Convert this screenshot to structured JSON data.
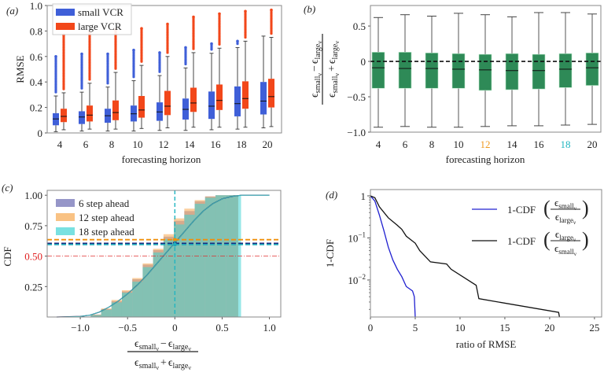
{
  "panel_labels": [
    "(a)",
    "(b)",
    "(c)",
    "(d)"
  ],
  "math": {
    "eps": "ϵ",
    "small": "small",
    "large": "large",
    "nu": "ν",
    "minus": "−",
    "plus": "+",
    "cdf_prefix": "1-CDF",
    "lparen": "(",
    "rparen": ")"
  },
  "chart_data": [
    {
      "type": "box",
      "xlabel": "forecasting horizon",
      "ylabel": "RMSE",
      "ylim": [
        0,
        1.0
      ],
      "yticks": [
        "0",
        "0.2",
        "0.4",
        "0.6",
        "0.8",
        "1.0"
      ],
      "categories": [
        "4",
        "6",
        "8",
        "10",
        "12",
        "14",
        "16",
        "18",
        "20"
      ],
      "legend_position": "top-left",
      "series": [
        {
          "name": "small VCR",
          "color": "#3f5fd8",
          "q1": [
            0.06,
            0.07,
            0.08,
            0.09,
            0.095,
            0.105,
            0.11,
            0.13,
            0.145
          ],
          "median": [
            0.11,
            0.125,
            0.135,
            0.15,
            0.165,
            0.185,
            0.21,
            0.23,
            0.25
          ],
          "q3": [
            0.155,
            0.17,
            0.19,
            0.215,
            0.24,
            0.27,
            0.325,
            0.365,
            0.4
          ],
          "whisker_low": [
            0.01,
            0.015,
            0.015,
            0.015,
            0.02,
            0.02,
            0.025,
            0.03,
            0.04
          ],
          "whisker_high": [
            0.29,
            0.32,
            0.36,
            0.41,
            0.45,
            0.51,
            0.625,
            0.67,
            0.76
          ],
          "outlier_max": [
            0.6,
            0.62,
            0.62,
            0.65,
            0.63,
            0.67,
            0.7,
            0.72,
            null
          ]
        },
        {
          "name": "large VCR",
          "color": "#f2471a",
          "q1": [
            0.085,
            0.09,
            0.1,
            0.12,
            0.14,
            0.165,
            0.18,
            0.19,
            0.2
          ],
          "median": [
            0.13,
            0.14,
            0.16,
            0.18,
            0.21,
            0.235,
            0.255,
            0.27,
            0.285
          ],
          "q3": [
            0.19,
            0.215,
            0.255,
            0.29,
            0.33,
            0.355,
            0.38,
            0.405,
            0.425
          ],
          "whisker_low": [
            0.025,
            0.03,
            0.03,
            0.035,
            0.04,
            0.045,
            0.045,
            0.045,
            0.05
          ],
          "whisker_high": [
            0.315,
            0.39,
            0.475,
            0.53,
            0.6,
            0.63,
            0.665,
            0.72,
            0.75
          ],
          "outlier_max": [
            0.77,
            0.79,
            0.81,
            0.82,
            0.855,
            0.91,
            0.935,
            0.955,
            0.965
          ]
        }
      ]
    },
    {
      "type": "box",
      "xlabel": "forecasting horizon",
      "ylim": [
        -1.0,
        0.79
      ],
      "yticks": [
        "−1.0",
        "−0.5",
        "0",
        "0.5"
      ],
      "ytick_values": [
        -1.0,
        -0.5,
        0,
        0.5
      ],
      "reference_line": 0,
      "categories": [
        "4",
        "6",
        "8",
        "10",
        "12",
        "14",
        "16",
        "18",
        "20"
      ],
      "category_colors": {
        "12": "#f09a20",
        "18": "#20b5c0"
      },
      "color": "#2e8a57",
      "q1": [
        -0.38,
        -0.38,
        -0.38,
        -0.38,
        -0.41,
        -0.4,
        -0.39,
        -0.37,
        -0.34
      ],
      "median": [
        -0.09,
        -0.1,
        -0.1,
        -0.11,
        -0.12,
        -0.13,
        -0.13,
        -0.11,
        -0.09
      ],
      "q3": [
        0.13,
        0.13,
        0.12,
        0.11,
        0.1,
        0.11,
        0.1,
        0.11,
        0.12
      ],
      "whisker_low": [
        -0.93,
        -0.92,
        -0.93,
        -0.93,
        -0.92,
        -0.91,
        -0.91,
        -0.9,
        -0.89
      ],
      "whisker_high": [
        0.62,
        0.66,
        0.64,
        0.68,
        0.66,
        0.63,
        0.69,
        0.69,
        0.67
      ]
    },
    {
      "type": "histogram-cdf",
      "ylabel": "CDF",
      "xlim": [
        -1.35,
        1.12
      ],
      "ylim": [
        0,
        1.04
      ],
      "xticks": [
        "−1.0",
        "−0.5",
        "0",
        "0.5",
        "1.0"
      ],
      "xtick_values": [
        -1.0,
        -0.5,
        0,
        0.5,
        1.0
      ],
      "yticks": [
        "0.25",
        "0.50",
        "0.75",
        "1.00"
      ],
      "ytick_values": [
        0.25,
        0.5,
        0.75,
        1.0
      ],
      "highlight_ytick": {
        "label": "0.50",
        "color": "#e02020"
      },
      "legend_position": "top-left",
      "bin_edges": [
        -0.89,
        -0.78,
        -0.67,
        -0.56,
        -0.45,
        -0.34,
        -0.23,
        -0.12,
        -0.01,
        0.1,
        0.21,
        0.32,
        0.43,
        0.54,
        0.67
      ],
      "series": [
        {
          "name": "6 step ahead",
          "color": "#6a6ab0",
          "last_edge": 0.67,
          "hline": 0.605,
          "hline_color": "#1a2a80",
          "values": [
            0.02,
            0.065,
            0.13,
            0.21,
            0.31,
            0.43,
            0.55,
            0.66,
            0.79,
            0.87,
            0.95,
            0.99,
            1.0,
            1.0
          ]
        },
        {
          "name": "12 step ahead",
          "color": "#f7a850",
          "last_edge": 0.67,
          "hline": 0.635,
          "hline_color": "#f0900a",
          "values": [
            0.02,
            0.07,
            0.14,
            0.22,
            0.32,
            0.44,
            0.56,
            0.68,
            0.81,
            0.89,
            0.96,
            0.99,
            1.0,
            1.0
          ]
        },
        {
          "name": "18 step ahead",
          "color": "#40d4d4",
          "last_edge": 0.7,
          "hline": 0.595,
          "hline_color": "#20a8b8",
          "values": [
            0.015,
            0.06,
            0.12,
            0.2,
            0.29,
            0.41,
            0.53,
            0.64,
            0.76,
            0.84,
            0.93,
            0.98,
            1.0,
            1.0
          ]
        }
      ],
      "curve": {
        "x": [
          -1.25,
          -1.0,
          -0.9,
          -0.8,
          -0.7,
          -0.6,
          -0.5,
          -0.4,
          -0.3,
          -0.2,
          -0.1,
          0,
          0.1,
          0.2,
          0.3,
          0.4,
          0.5,
          0.6,
          0.7,
          0.8,
          1.0
        ],
        "y": [
          0,
          0.005,
          0.015,
          0.04,
          0.08,
          0.13,
          0.19,
          0.26,
          0.34,
          0.43,
          0.52,
          0.61,
          0.7,
          0.79,
          0.87,
          0.93,
          0.97,
          0.99,
          1.0,
          1.0,
          1.0
        ]
      },
      "reference_lines": {
        "vertical_x": 0,
        "vertical_color": "#20b5c0",
        "median_y": 0.5,
        "median_color": "#e03030"
      }
    },
    {
      "type": "line",
      "xlabel": "ratio of RMSE",
      "ylabel": "1-CDF",
      "yscale": "log",
      "xlim": [
        0,
        25.8
      ],
      "ylim": [
        0.00132,
        1.41
      ],
      "xticks": [
        "0",
        "5",
        "10",
        "15",
        "20",
        "25"
      ],
      "xtick_values": [
        0,
        5,
        10,
        15,
        20,
        25
      ],
      "yticks": [
        "1",
        "10",
        "10"
      ],
      "ytick_exponents": [
        "",
        "−1",
        "−2"
      ],
      "ytick_values": [
        1,
        0.1,
        0.01
      ],
      "legend_position": "top-right",
      "series": [
        {
          "color": "#2020d0",
          "x": [
            0,
            0.5,
            1,
            1.5,
            2,
            2.5,
            3,
            3.5,
            4,
            4.7,
            4.9,
            5.0
          ],
          "y": [
            1,
            0.75,
            0.35,
            0.15,
            0.06,
            0.03,
            0.018,
            0.012,
            0.007,
            0.0055,
            0.004,
            0.0013
          ]
        },
        {
          "color": "#111111",
          "x": [
            0,
            0.5,
            1,
            2,
            3,
            3.5,
            4,
            5,
            5.5,
            6.7,
            8.5,
            9,
            11.8,
            12.1,
            21.0,
            21.1
          ],
          "y": [
            1,
            0.9,
            0.55,
            0.3,
            0.2,
            0.16,
            0.11,
            0.075,
            0.05,
            0.027,
            0.024,
            0.018,
            0.0075,
            0.0036,
            0.0017,
            0.0013
          ]
        }
      ]
    }
  ]
}
